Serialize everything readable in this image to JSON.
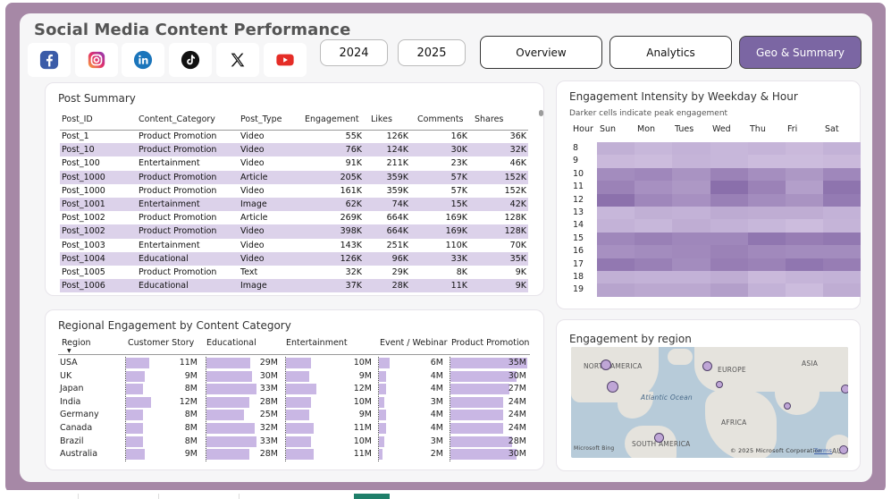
{
  "title": "Social Media Content Performance",
  "social_icons": [
    "facebook-icon",
    "instagram-icon",
    "linkedin-icon",
    "tiktok-icon",
    "x-icon",
    "youtube-icon"
  ],
  "years": [
    "2024",
    "2025"
  ],
  "nav": [
    "Overview",
    "Analytics",
    "Geo & Summary"
  ],
  "active_nav": "Geo & Summary",
  "colors": {
    "accent": "#7b66a3",
    "frame": "#a688a6",
    "bar": "#c9b7e4",
    "row_alt": "#dcd2ea"
  },
  "post_summary": {
    "title": "Post Summary",
    "columns": [
      "Post_ID",
      "Content_Category",
      "Post_Type",
      "Engagement",
      "Likes",
      "Comments",
      "Shares"
    ],
    "rows": [
      [
        "Post_1",
        "Product Promotion",
        "Video",
        "55K",
        "126K",
        "16K",
        "36K"
      ],
      [
        "Post_10",
        "Product Promotion",
        "Video",
        "76K",
        "124K",
        "30K",
        "32K"
      ],
      [
        "Post_100",
        "Entertainment",
        "Video",
        "91K",
        "211K",
        "23K",
        "46K"
      ],
      [
        "Post_1000",
        "Product Promotion",
        "Article",
        "205K",
        "359K",
        "57K",
        "152K"
      ],
      [
        "Post_1000",
        "Product Promotion",
        "Video",
        "161K",
        "359K",
        "57K",
        "152K"
      ],
      [
        "Post_1001",
        "Entertainment",
        "Image",
        "62K",
        "74K",
        "15K",
        "42K"
      ],
      [
        "Post_1002",
        "Product Promotion",
        "Article",
        "269K",
        "664K",
        "169K",
        "128K"
      ],
      [
        "Post_1002",
        "Product Promotion",
        "Video",
        "398K",
        "664K",
        "169K",
        "128K"
      ],
      [
        "Post_1003",
        "Entertainment",
        "Video",
        "143K",
        "251K",
        "110K",
        "70K"
      ],
      [
        "Post_1004",
        "Educational",
        "Video",
        "126K",
        "96K",
        "33K",
        "35K"
      ],
      [
        "Post_1005",
        "Product Promotion",
        "Text",
        "32K",
        "29K",
        "8K",
        "9K"
      ],
      [
        "Post_1006",
        "Educational",
        "Image",
        "37K",
        "28K",
        "11K",
        "9K"
      ]
    ]
  },
  "heatmap": {
    "title": "Engagement Intensity by Weekday & Hour",
    "subtitle": "Darker cells indicate peak engagement",
    "hour_label": "Hour",
    "days": [
      "Sun",
      "Mon",
      "Tues",
      "Wed",
      "Thu",
      "Fri",
      "Sat"
    ],
    "hours": [
      "8",
      "9",
      "10",
      "11",
      "12",
      "13",
      "14",
      "15",
      "16",
      "17",
      "18",
      "19"
    ],
    "intensity": [
      [
        0.32,
        0.26,
        0.3,
        0.26,
        0.28,
        0.24,
        0.3
      ],
      [
        0.24,
        0.22,
        0.28,
        0.26,
        0.22,
        0.22,
        0.24
      ],
      [
        0.62,
        0.66,
        0.56,
        0.7,
        0.6,
        0.52,
        0.66
      ],
      [
        0.7,
        0.58,
        0.52,
        0.86,
        0.7,
        0.46,
        0.82
      ],
      [
        0.84,
        0.66,
        0.58,
        0.72,
        0.62,
        0.56,
        0.76
      ],
      [
        0.26,
        0.32,
        0.3,
        0.36,
        0.34,
        0.34,
        0.3
      ],
      [
        0.3,
        0.26,
        0.34,
        0.3,
        0.26,
        0.22,
        0.28
      ],
      [
        0.66,
        0.72,
        0.66,
        0.66,
        0.8,
        0.74,
        0.78
      ],
      [
        0.58,
        0.62,
        0.64,
        0.7,
        0.64,
        0.62,
        0.62
      ],
      [
        0.78,
        0.72,
        0.62,
        0.74,
        0.7,
        0.8,
        0.74
      ],
      [
        0.32,
        0.3,
        0.3,
        0.34,
        0.24,
        0.28,
        0.3
      ],
      [
        0.42,
        0.38,
        0.38,
        0.46,
        0.3,
        0.22,
        0.34
      ]
    ]
  },
  "regional": {
    "title": "Regional Engagement by Content Category",
    "region_label": "Region",
    "categories": [
      "Customer Story",
      "Educational",
      "Entertainment",
      "Event / Webinar",
      "Product Promotion"
    ],
    "rows": [
      {
        "region": "USA",
        "values": [
          "11M",
          "29M",
          "10M",
          "6M",
          "35M"
        ],
        "n": [
          11,
          29,
          10,
          6,
          35
        ]
      },
      {
        "region": "UK",
        "values": [
          "9M",
          "30M",
          "9M",
          "4M",
          "30M"
        ],
        "n": [
          9,
          30,
          9,
          4,
          30
        ]
      },
      {
        "region": "Japan",
        "values": [
          "8M",
          "33M",
          "12M",
          "4M",
          "27M"
        ],
        "n": [
          8,
          33,
          12,
          4,
          27
        ]
      },
      {
        "region": "India",
        "values": [
          "12M",
          "28M",
          "10M",
          "3M",
          "24M"
        ],
        "n": [
          12,
          28,
          10,
          3,
          24
        ]
      },
      {
        "region": "Germany",
        "values": [
          "8M",
          "25M",
          "9M",
          "4M",
          "24M"
        ],
        "n": [
          8,
          25,
          9,
          4,
          24
        ]
      },
      {
        "region": "Canada",
        "values": [
          "8M",
          "32M",
          "11M",
          "4M",
          "24M"
        ],
        "n": [
          8,
          32,
          11,
          4,
          24
        ]
      },
      {
        "region": "Brazil",
        "values": [
          "8M",
          "33M",
          "10M",
          "3M",
          "28M"
        ],
        "n": [
          8,
          33,
          10,
          3,
          28
        ]
      },
      {
        "region": "Australia",
        "values": [
          "9M",
          "28M",
          "11M",
          "2M",
          "30M"
        ],
        "n": [
          9,
          28,
          11,
          2,
          30
        ]
      }
    ]
  },
  "map": {
    "title": "Engagement by region",
    "labels": {
      "na": "NORTH AMERICA",
      "eu": "EUROPE",
      "asia": "ASIA",
      "atl": "Atlantic Ocean",
      "af": "AFRICA",
      "sa": "SOUTH AMERICA",
      "au": "AUSTR"
    },
    "credit": "© 2025 Microsoft Corporation",
    "terms": "Terms",
    "brand": "Microsoft Bing"
  }
}
